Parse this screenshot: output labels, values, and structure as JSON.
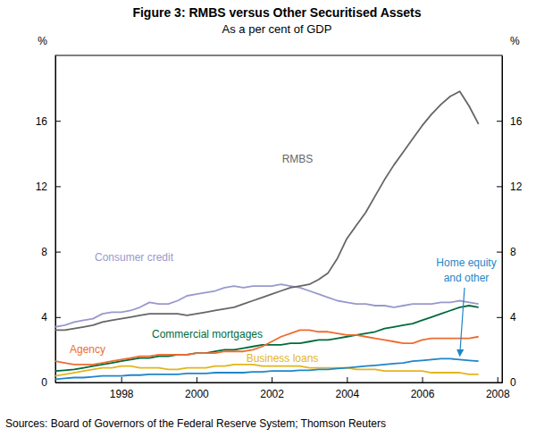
{
  "chart_data": {
    "type": "line",
    "title": "Figure 3: RMBS versus Other Securitised Assets",
    "subtitle": "As a per cent of GDP",
    "ylabel": "%",
    "y2label": "%",
    "source": "Sources: Board of Governors of the Federal Reserve System; Thomson Reuters",
    "x": [
      1996.25,
      1996.5,
      1996.75,
      1997,
      1997.25,
      1997.5,
      1997.75,
      1998,
      1998.25,
      1998.5,
      1998.75,
      1999,
      1999.25,
      1999.5,
      1999.75,
      2000,
      2000.25,
      2000.5,
      2000.75,
      2001,
      2001.25,
      2001.5,
      2001.75,
      2002,
      2002.25,
      2002.5,
      2002.75,
      2003,
      2003.25,
      2003.5,
      2003.75,
      2004,
      2004.25,
      2004.5,
      2004.75,
      2005,
      2005.25,
      2005.5,
      2005.75,
      2006,
      2006.25,
      2006.5,
      2006.75,
      2007,
      2007.25,
      2007.5
    ],
    "xlim": [
      1996.25,
      2008.125
    ],
    "xticks": [
      1998,
      2000,
      2002,
      2004,
      2006,
      2008
    ],
    "ylim": [
      0,
      20
    ],
    "yticks": [
      0,
      4,
      8,
      12,
      16
    ],
    "y2lim": [
      0,
      20
    ],
    "y2ticks": [
      0,
      4,
      8,
      12,
      16
    ],
    "grid": false,
    "series": [
      {
        "name": "RMBS",
        "color": "#666666",
        "values": [
          3.2,
          3.2,
          3.3,
          3.4,
          3.5,
          3.7,
          3.8,
          3.9,
          4.0,
          4.1,
          4.2,
          4.2,
          4.2,
          4.2,
          4.1,
          4.2,
          4.3,
          4.4,
          4.5,
          4.6,
          4.8,
          5.0,
          5.2,
          5.4,
          5.6,
          5.8,
          5.9,
          6.0,
          6.3,
          6.7,
          7.6,
          8.8,
          9.6,
          10.4,
          11.4,
          12.4,
          13.3,
          14.1,
          14.9,
          15.7,
          16.4,
          17.0,
          17.5,
          17.8,
          16.9,
          15.8
        ]
      },
      {
        "name": "Consumer credit",
        "color": "#9999cc",
        "values": [
          3.4,
          3.5,
          3.7,
          3.8,
          3.9,
          4.2,
          4.3,
          4.3,
          4.4,
          4.6,
          4.9,
          4.8,
          4.8,
          5.0,
          5.3,
          5.4,
          5.5,
          5.6,
          5.8,
          5.9,
          5.8,
          5.9,
          5.9,
          5.9,
          6.0,
          5.9,
          5.8,
          5.6,
          5.4,
          5.2,
          5.0,
          4.9,
          4.8,
          4.8,
          4.7,
          4.7,
          4.6,
          4.7,
          4.8,
          4.8,
          4.8,
          4.9,
          4.9,
          5.0,
          4.9,
          4.8
        ]
      },
      {
        "name": "Commercial mortgages",
        "color": "#006b3c",
        "values": [
          0.7,
          0.75,
          0.8,
          0.9,
          1.0,
          1.1,
          1.2,
          1.3,
          1.4,
          1.5,
          1.5,
          1.6,
          1.6,
          1.7,
          1.7,
          1.8,
          1.8,
          1.9,
          2.0,
          2.0,
          2.1,
          2.2,
          2.3,
          2.3,
          2.3,
          2.4,
          2.4,
          2.5,
          2.6,
          2.6,
          2.7,
          2.8,
          2.9,
          3.0,
          3.1,
          3.3,
          3.4,
          3.5,
          3.6,
          3.8,
          4.0,
          4.2,
          4.4,
          4.6,
          4.7,
          4.6
        ]
      },
      {
        "name": "Agency",
        "color": "#ef6c2e",
        "values": [
          1.3,
          1.2,
          1.1,
          1.1,
          1.1,
          1.2,
          1.3,
          1.4,
          1.5,
          1.6,
          1.6,
          1.7,
          1.7,
          1.7,
          1.7,
          1.8,
          1.8,
          1.8,
          1.9,
          1.9,
          1.9,
          2.0,
          2.2,
          2.5,
          2.8,
          3.0,
          3.2,
          3.2,
          3.1,
          3.1,
          3.0,
          2.9,
          2.9,
          2.8,
          2.7,
          2.6,
          2.5,
          2.4,
          2.4,
          2.6,
          2.7,
          2.7,
          2.7,
          2.7,
          2.7,
          2.8
        ]
      },
      {
        "name": "Business loans",
        "color": "#e3b51c",
        "values": [
          0.4,
          0.5,
          0.6,
          0.7,
          0.8,
          0.9,
          0.9,
          1.0,
          1.0,
          0.9,
          0.9,
          0.9,
          0.8,
          0.8,
          0.9,
          0.9,
          0.9,
          1.0,
          1.0,
          1.1,
          1.1,
          1.1,
          1.0,
          1.0,
          1.0,
          1.0,
          1.0,
          0.9,
          0.9,
          0.9,
          0.9,
          0.9,
          0.8,
          0.8,
          0.8,
          0.7,
          0.7,
          0.7,
          0.7,
          0.7,
          0.6,
          0.6,
          0.6,
          0.6,
          0.5,
          0.5
        ]
      },
      {
        "name": "Home equity and other",
        "color": "#1f86c8",
        "values": [
          0.2,
          0.25,
          0.3,
          0.3,
          0.35,
          0.4,
          0.4,
          0.4,
          0.45,
          0.45,
          0.5,
          0.5,
          0.5,
          0.5,
          0.55,
          0.55,
          0.55,
          0.6,
          0.6,
          0.6,
          0.6,
          0.65,
          0.65,
          0.7,
          0.7,
          0.7,
          0.75,
          0.75,
          0.8,
          0.8,
          0.85,
          0.9,
          0.95,
          1.0,
          1.05,
          1.1,
          1.15,
          1.2,
          1.3,
          1.35,
          1.4,
          1.45,
          1.45,
          1.4,
          1.35,
          1.3
        ]
      }
    ]
  }
}
